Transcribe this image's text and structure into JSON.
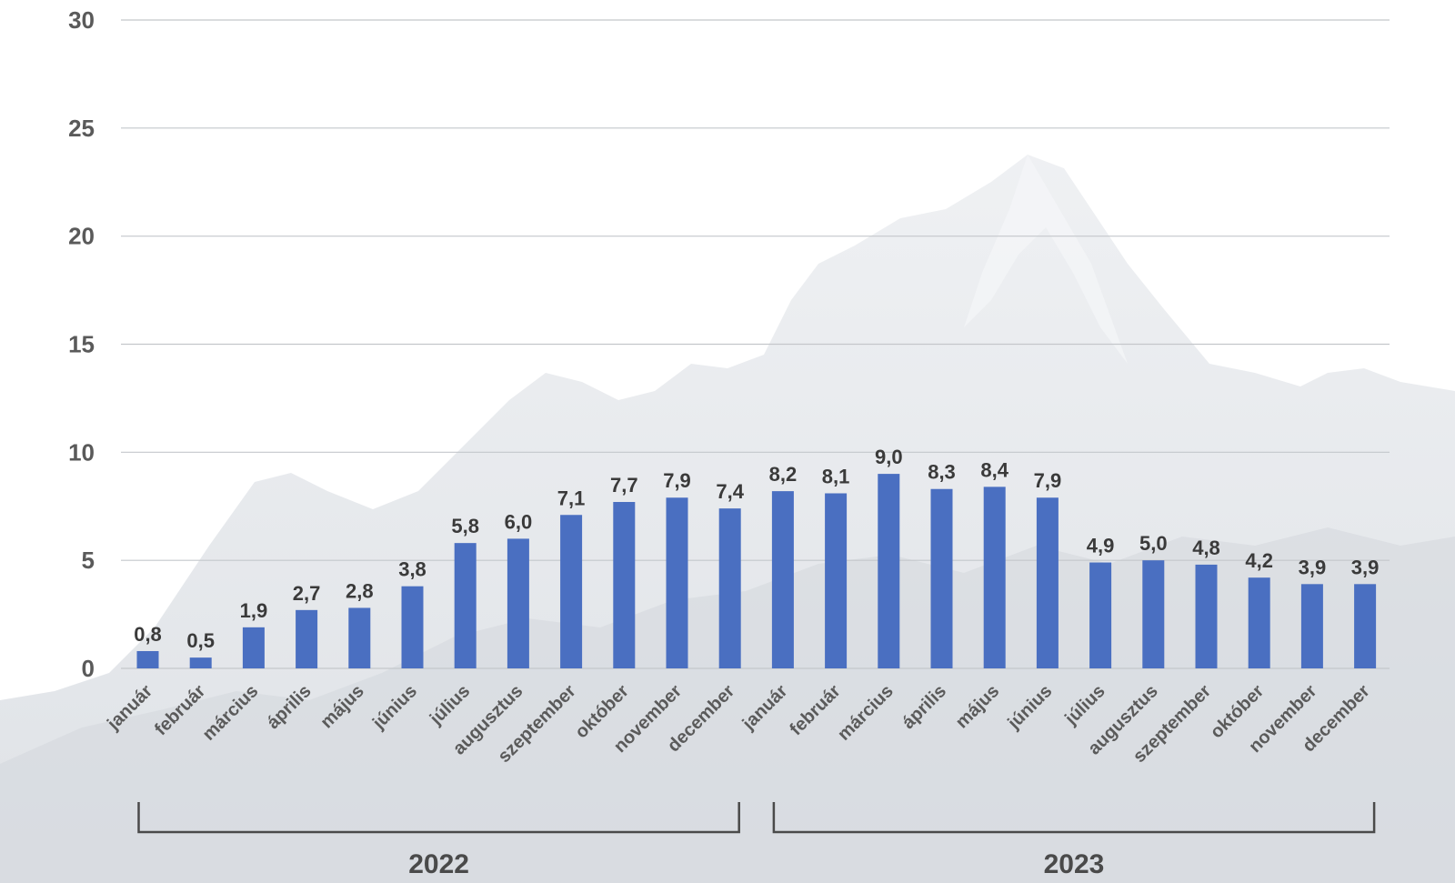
{
  "chart_data": {
    "type": "bar",
    "title": "",
    "xlabel": "",
    "ylabel": "",
    "ylim": [
      0,
      30
    ],
    "yticks": [
      0,
      5,
      10,
      15,
      20,
      25,
      30
    ],
    "yticks_text": [
      "0",
      "5",
      "10",
      "15",
      "20",
      "25",
      "30"
    ],
    "grid": true,
    "legend": "none",
    "bar_color": "#4a6fc1",
    "categories": [
      "január",
      "február",
      "március",
      "április",
      "május",
      "június",
      "július",
      "augusztus",
      "szeptember",
      "október",
      "november",
      "december",
      "január",
      "február",
      "március",
      "április",
      "május",
      "június",
      "július",
      "augusztus",
      "szeptember",
      "október",
      "november",
      "december"
    ],
    "values": [
      0.8,
      0.5,
      1.9,
      2.7,
      2.8,
      3.8,
      5.8,
      6.0,
      7.1,
      7.7,
      7.9,
      7.4,
      8.2,
      8.1,
      9.0,
      8.3,
      8.4,
      7.9,
      4.9,
      5.0,
      4.8,
      4.2,
      3.9,
      3.9
    ],
    "value_labels": [
      "0,8",
      "0,5",
      "1,9",
      "2,7",
      "2,8",
      "3,8",
      "5,8",
      "6,0",
      "7,1",
      "7,7",
      "7,9",
      "7,4",
      "8,2",
      "8,1",
      "9,0",
      "8,3",
      "8,4",
      "7,9",
      "4,9",
      "5,0",
      "4,8",
      "4,2",
      "3,9",
      "3,9"
    ],
    "groups": [
      {
        "label": "2022",
        "start": 0,
        "end": 11
      },
      {
        "label": "2023",
        "start": 12,
        "end": 23
      }
    ]
  }
}
